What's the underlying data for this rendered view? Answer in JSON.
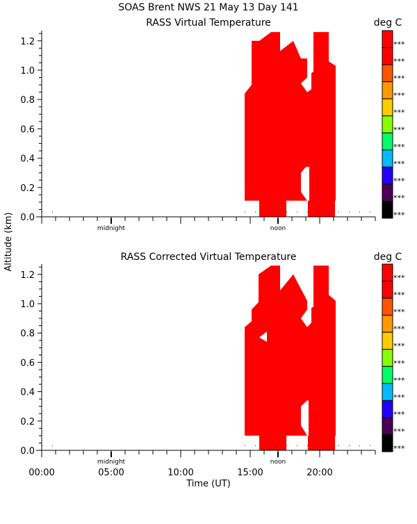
{
  "header": {
    "title": "SOAS Brent NWS  21 May 13 Day 141"
  },
  "shared": {
    "ylabel": "Altitude (km)",
    "xlabel": "Time (UT)",
    "colorbar_unit": "deg C",
    "colorbar_labels": [
      "***",
      "***",
      "***",
      "***",
      "***",
      "***",
      "***",
      "***",
      "***",
      "***",
      "***"
    ],
    "colorbar_colors_top_to_bottom": [
      "#ff0000",
      "#ff0000",
      "#ff5500",
      "#ff9900",
      "#ffcc00",
      "#88ff00",
      "#00ff66",
      "#00bbff",
      "#2200ff",
      "#4a0055",
      "#000000"
    ],
    "fill_color": "#ff0000",
    "markers": {
      "midnight": "midnight",
      "noon": "noon",
      "midnight_hour": 5,
      "noon_hour": 17
    }
  },
  "chart_data": [
    {
      "type": "area",
      "title": "RASS Virtual Temperature",
      "xlabel": "",
      "ylabel": "Altitude (km)",
      "xlim": [
        0,
        24
      ],
      "ylim": [
        0,
        1.27
      ],
      "xticks": [],
      "yticks": [
        "0.0",
        "0.2",
        "0.4",
        "0.6",
        "0.8",
        "1.0",
        "1.2"
      ],
      "sampling_dots": [
        [
          0,
          1
        ],
        [
          14.6,
          24
        ]
      ],
      "sampling_alt": 0.035,
      "regions": [
        [
          [
            14.6,
            0.11
          ],
          [
            14.6,
            0.84
          ],
          [
            15.1,
            0.9
          ],
          [
            15.1,
            1.2
          ],
          [
            15.65,
            1.2
          ],
          [
            16.5,
            1.26
          ],
          [
            17.15,
            1.26
          ],
          [
            17.15,
            1.13
          ],
          [
            18.1,
            1.2
          ],
          [
            18.65,
            1.08
          ],
          [
            19.1,
            1.08
          ],
          [
            19.1,
            0.95
          ],
          [
            18.65,
            0.91
          ],
          [
            19.1,
            0.85
          ],
          [
            19.4,
            0.87
          ],
          [
            19.4,
            0.98
          ],
          [
            19.55,
            0.99
          ],
          [
            19.55,
            1.26
          ],
          [
            20.65,
            1.26
          ],
          [
            20.65,
            1.06
          ],
          [
            21.15,
            1.03
          ],
          [
            21.15,
            0.11
          ],
          [
            21.1,
            0.11
          ],
          [
            21.1,
            0
          ],
          [
            19.15,
            0
          ],
          [
            19.15,
            0.11
          ],
          [
            19.25,
            0.11
          ],
          [
            19.25,
            0.34
          ],
          [
            19.0,
            0.34
          ],
          [
            18.65,
            0.3
          ],
          [
            18.65,
            0.17
          ],
          [
            19.1,
            0.11
          ],
          [
            17.6,
            0.11
          ],
          [
            17.6,
            0
          ],
          [
            15.65,
            0
          ],
          [
            15.65,
            0.11
          ]
        ]
      ],
      "holes": []
    },
    {
      "type": "area",
      "title": "RASS Corrected Virtual Temperature",
      "xlabel": "Time (UT)",
      "ylabel": "Altitude (km)",
      "xlim": [
        0,
        24
      ],
      "ylim": [
        0,
        1.27
      ],
      "xticks": [
        "00:00",
        "05:00",
        "10:00",
        "15:00",
        "20:00"
      ],
      "yticks": [
        "0.0",
        "0.2",
        "0.4",
        "0.6",
        "0.8",
        "1.0",
        "1.2"
      ],
      "sampling_dots": [
        [
          0,
          1
        ],
        [
          14.6,
          24
        ]
      ],
      "sampling_alt": 0.035,
      "regions": [
        [
          [
            14.6,
            0.1
          ],
          [
            14.6,
            0.84
          ],
          [
            15.1,
            0.88
          ],
          [
            15.1,
            0.96
          ],
          [
            15.6,
            1.01
          ],
          [
            15.6,
            1.2
          ],
          [
            16.5,
            1.26
          ],
          [
            17.15,
            1.26
          ],
          [
            17.15,
            1.09
          ],
          [
            18.1,
            1.2
          ],
          [
            19.1,
            1.02
          ],
          [
            19.1,
            0.96
          ],
          [
            18.65,
            0.9
          ],
          [
            19.1,
            0.84
          ],
          [
            19.4,
            0.87
          ],
          [
            19.4,
            0.97
          ],
          [
            19.55,
            0.98
          ],
          [
            19.55,
            1.26
          ],
          [
            20.65,
            1.26
          ],
          [
            20.65,
            1.06
          ],
          [
            21.15,
            1.02
          ],
          [
            21.15,
            0.1
          ],
          [
            21.1,
            0.1
          ],
          [
            21.1,
            0
          ],
          [
            19.15,
            0
          ],
          [
            19.15,
            0.1
          ],
          [
            19.2,
            0.1
          ],
          [
            19.2,
            0.34
          ],
          [
            19.1,
            0.34
          ],
          [
            18.65,
            0.3
          ],
          [
            18.65,
            0.17
          ],
          [
            19.1,
            0.1
          ],
          [
            17.6,
            0.1
          ],
          [
            17.6,
            0
          ],
          [
            15.65,
            0
          ],
          [
            15.65,
            0.1
          ]
        ]
      ],
      "holes": [
        [
          [
            15.65,
            0.77
          ],
          [
            16.2,
            0.81
          ],
          [
            16.2,
            0.74
          ]
        ]
      ]
    }
  ]
}
